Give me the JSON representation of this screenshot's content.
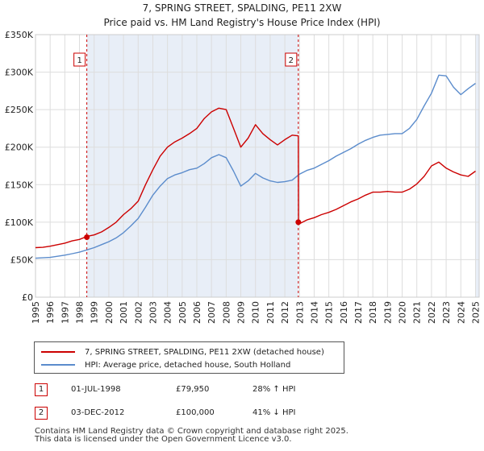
{
  "colors": {
    "price": "#cc0000",
    "hpi": "#5b8ccc",
    "grid": "#dddddd",
    "shade": "#e8eef7",
    "marker_line": "#cc0000"
  },
  "header": {
    "title": "7, SPRING STREET, SPALDING, PE11 2XW",
    "subtitle": "Price paid vs. HM Land Registry's House Price Index (HPI)"
  },
  "chart_data": {
    "type": "line",
    "title": "7, SPRING STREET, SPALDING, PE11 2XW",
    "subtitle": "Price paid vs. HM Land Registry's House Price Index (HPI)",
    "xlim": [
      1995,
      2025.25
    ],
    "ylim": [
      0,
      350000
    ],
    "y_ticks": [
      0,
      50000,
      100000,
      150000,
      200000,
      250000,
      300000,
      350000
    ],
    "y_tick_labels": [
      "£0",
      "£50K",
      "£100K",
      "£150K",
      "£200K",
      "£250K",
      "£300K",
      "£350K"
    ],
    "x_ticks": [
      1995,
      1996,
      1997,
      1998,
      1999,
      2000,
      2001,
      2002,
      2003,
      2004,
      2005,
      2006,
      2007,
      2008,
      2009,
      2010,
      2011,
      2012,
      2013,
      2014,
      2015,
      2016,
      2017,
      2018,
      2019,
      2020,
      2021,
      2022,
      2023,
      2024,
      2025
    ],
    "x_tick_labels": [
      "1995",
      "1996",
      "1997",
      "1998",
      "1999",
      "2000",
      "2001",
      "2002",
      "2003",
      "2004",
      "2005",
      "2006",
      "2007",
      "2008",
      "2009",
      "2010",
      "2011",
      "2012",
      "2013",
      "2014",
      "2015",
      "2016",
      "2017",
      "2018",
      "2019",
      "2020",
      "2021",
      "2022",
      "2023",
      "2024",
      "2025"
    ],
    "grid": true,
    "series": [
      {
        "name": "7, SPRING STREET, SPALDING, PE11 2XW (detached house)",
        "x": [
          1995.0,
          1995.5,
          1996.0,
          1996.5,
          1997.0,
          1997.5,
          1998.0,
          1998.5,
          1999.0,
          1999.5,
          2000.0,
          2000.5,
          2001.0,
          2001.5,
          2002.0,
          2002.5,
          2003.0,
          2003.5,
          2004.0,
          2004.5,
          2005.0,
          2005.5,
          2006.0,
          2006.5,
          2007.0,
          2007.5,
          2008.0,
          2008.5,
          2009.0,
          2009.5,
          2010.0,
          2010.5,
          2011.0,
          2011.5,
          2012.0,
          2012.5,
          2012.92,
          2012.93,
          2013.0,
          2013.5,
          2014.0,
          2014.5,
          2015.0,
          2015.5,
          2016.0,
          2016.5,
          2017.0,
          2017.5,
          2018.0,
          2018.5,
          2019.0,
          2019.5,
          2020.0,
          2020.5,
          2021.0,
          2021.5,
          2022.0,
          2022.5,
          2023.0,
          2023.5,
          2024.0,
          2024.5,
          2025.0
        ],
        "y": [
          66000,
          66500,
          68000,
          70000,
          72000,
          75000,
          77000,
          81000,
          83000,
          87000,
          93000,
          100000,
          110000,
          118000,
          128000,
          150000,
          170000,
          188000,
          200000,
          207000,
          212000,
          218000,
          225000,
          238000,
          247000,
          252000,
          250000,
          225000,
          200000,
          212000,
          230000,
          218000,
          210000,
          203000,
          210000,
          216000,
          215000,
          100000,
          98000,
          103000,
          106000,
          110000,
          113000,
          117000,
          122000,
          127000,
          131000,
          136000,
          140000,
          140000,
          141000,
          140000,
          140000,
          144000,
          151000,
          161000,
          175000,
          180000,
          172000,
          167000,
          163000,
          161000,
          168000
        ]
      },
      {
        "name": "HPI: Average price, detached house, South Holland",
        "x": [
          1995.0,
          1995.5,
          1996.0,
          1996.5,
          1997.0,
          1997.5,
          1998.0,
          1998.5,
          1999.0,
          1999.5,
          2000.0,
          2000.5,
          2001.0,
          2001.5,
          2002.0,
          2002.5,
          2003.0,
          2003.5,
          2004.0,
          2004.5,
          2005.0,
          2005.5,
          2006.0,
          2006.5,
          2007.0,
          2007.5,
          2008.0,
          2008.5,
          2009.0,
          2009.5,
          2010.0,
          2010.5,
          2011.0,
          2011.5,
          2012.0,
          2012.5,
          2013.0,
          2013.5,
          2014.0,
          2014.5,
          2015.0,
          2015.5,
          2016.0,
          2016.5,
          2017.0,
          2017.5,
          2018.0,
          2018.5,
          2019.0,
          2019.5,
          2020.0,
          2020.5,
          2021.0,
          2021.5,
          2022.0,
          2022.5,
          2023.0,
          2023.5,
          2024.0,
          2024.5,
          2025.0
        ],
        "y": [
          52000,
          52500,
          53000,
          54500,
          56000,
          58000,
          60000,
          63000,
          66000,
          70000,
          74000,
          79000,
          86000,
          95000,
          105000,
          120000,
          136000,
          148000,
          158000,
          163000,
          166000,
          170000,
          172000,
          178000,
          186000,
          190000,
          186000,
          168000,
          148000,
          155000,
          165000,
          159000,
          155000,
          153000,
          154000,
          156000,
          164000,
          169000,
          172000,
          177000,
          182000,
          188000,
          193000,
          198000,
          204000,
          209000,
          213000,
          216000,
          217000,
          218000,
          218000,
          225000,
          237000,
          255000,
          272000,
          296000,
          295000,
          280000,
          270000,
          278000,
          285000
        ]
      }
    ],
    "markers": [
      {
        "label": "1",
        "x": 1998.5,
        "y": 79950
      },
      {
        "label": "2",
        "x": 2012.92,
        "y": 100000
      }
    ],
    "shaded_regions": [
      [
        1998.5,
        2012.92
      ],
      [
        2025.0,
        2025.25
      ]
    ]
  },
  "legend": {
    "items": [
      "7, SPRING STREET, SPALDING, PE11 2XW (detached house)",
      "HPI: Average price, detached house, South Holland"
    ]
  },
  "annotations": [
    {
      "label": "1",
      "date": "01-JUL-1998",
      "price": "£79,950",
      "hpi": "28% ↑ HPI"
    },
    {
      "label": "2",
      "date": "03-DEC-2012",
      "price": "£100,000",
      "hpi": "41% ↓ HPI"
    }
  ],
  "footer": {
    "line1": "Contains HM Land Registry data © Crown copyright and database right 2025.",
    "line2": "This data is licensed under the Open Government Licence v3.0."
  }
}
